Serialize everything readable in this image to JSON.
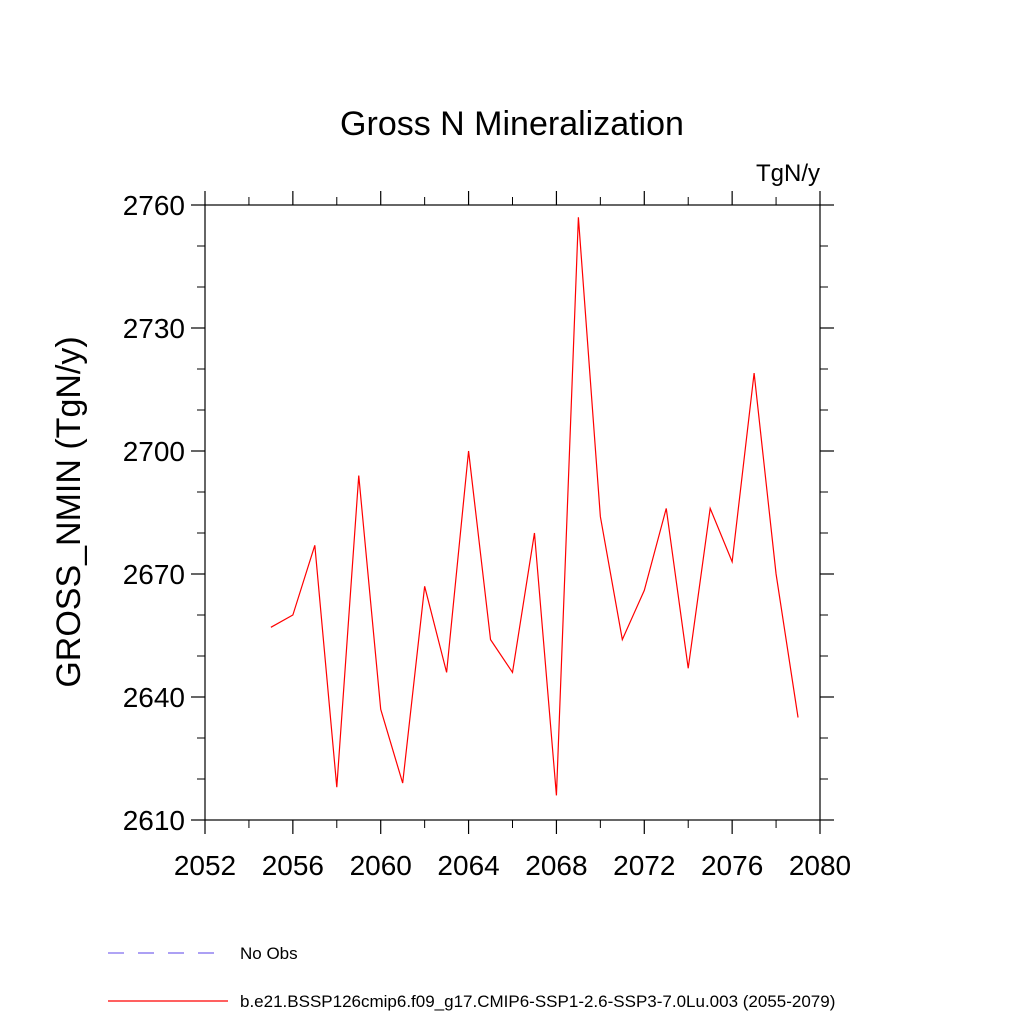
{
  "chart_data": {
    "type": "line",
    "title": "Gross N Mineralization",
    "units_label": "TgN/y",
    "ylabel": "GROSS_NMIN  (TgN/y)",
    "xlabel": "",
    "xlim": [
      2052,
      2080
    ],
    "ylim": [
      2610,
      2760
    ],
    "x_ticks": [
      2052,
      2056,
      2060,
      2064,
      2068,
      2072,
      2076,
      2080
    ],
    "y_ticks": [
      2610,
      2640,
      2670,
      2700,
      2730,
      2760
    ],
    "grid": false,
    "legend_position": "bottom-left",
    "series": [
      {
        "name": "b.e21.BSSP126cmip6.f09_g17.CMIP6-SSP1-2.6-SSP3-7.0Lu.003 (2055-2079)",
        "color": "#ff0000",
        "style": "solid",
        "x": [
          2055,
          2056,
          2057,
          2058,
          2059,
          2060,
          2061,
          2062,
          2063,
          2064,
          2065,
          2066,
          2067,
          2068,
          2069,
          2070,
          2071,
          2072,
          2073,
          2074,
          2075,
          2076,
          2077,
          2078,
          2079
        ],
        "y": [
          2657,
          2660,
          2677,
          2618,
          2694,
          2637,
          2619,
          2667,
          2646,
          2700,
          2654,
          2646,
          2680,
          2616,
          2757,
          2684,
          2654,
          2666,
          2686,
          2647,
          2686,
          2673,
          2719,
          2670,
          2635
        ]
      }
    ],
    "legend": [
      {
        "label": "No Obs",
        "color": "#7b68ee",
        "style": "dashed"
      },
      {
        "label": "b.e21.BSSP126cmip6.f09_g17.CMIP6-SSP1-2.6-SSP3-7.0Lu.003 (2055-2079)",
        "color": "#ff0000",
        "style": "solid"
      }
    ]
  }
}
